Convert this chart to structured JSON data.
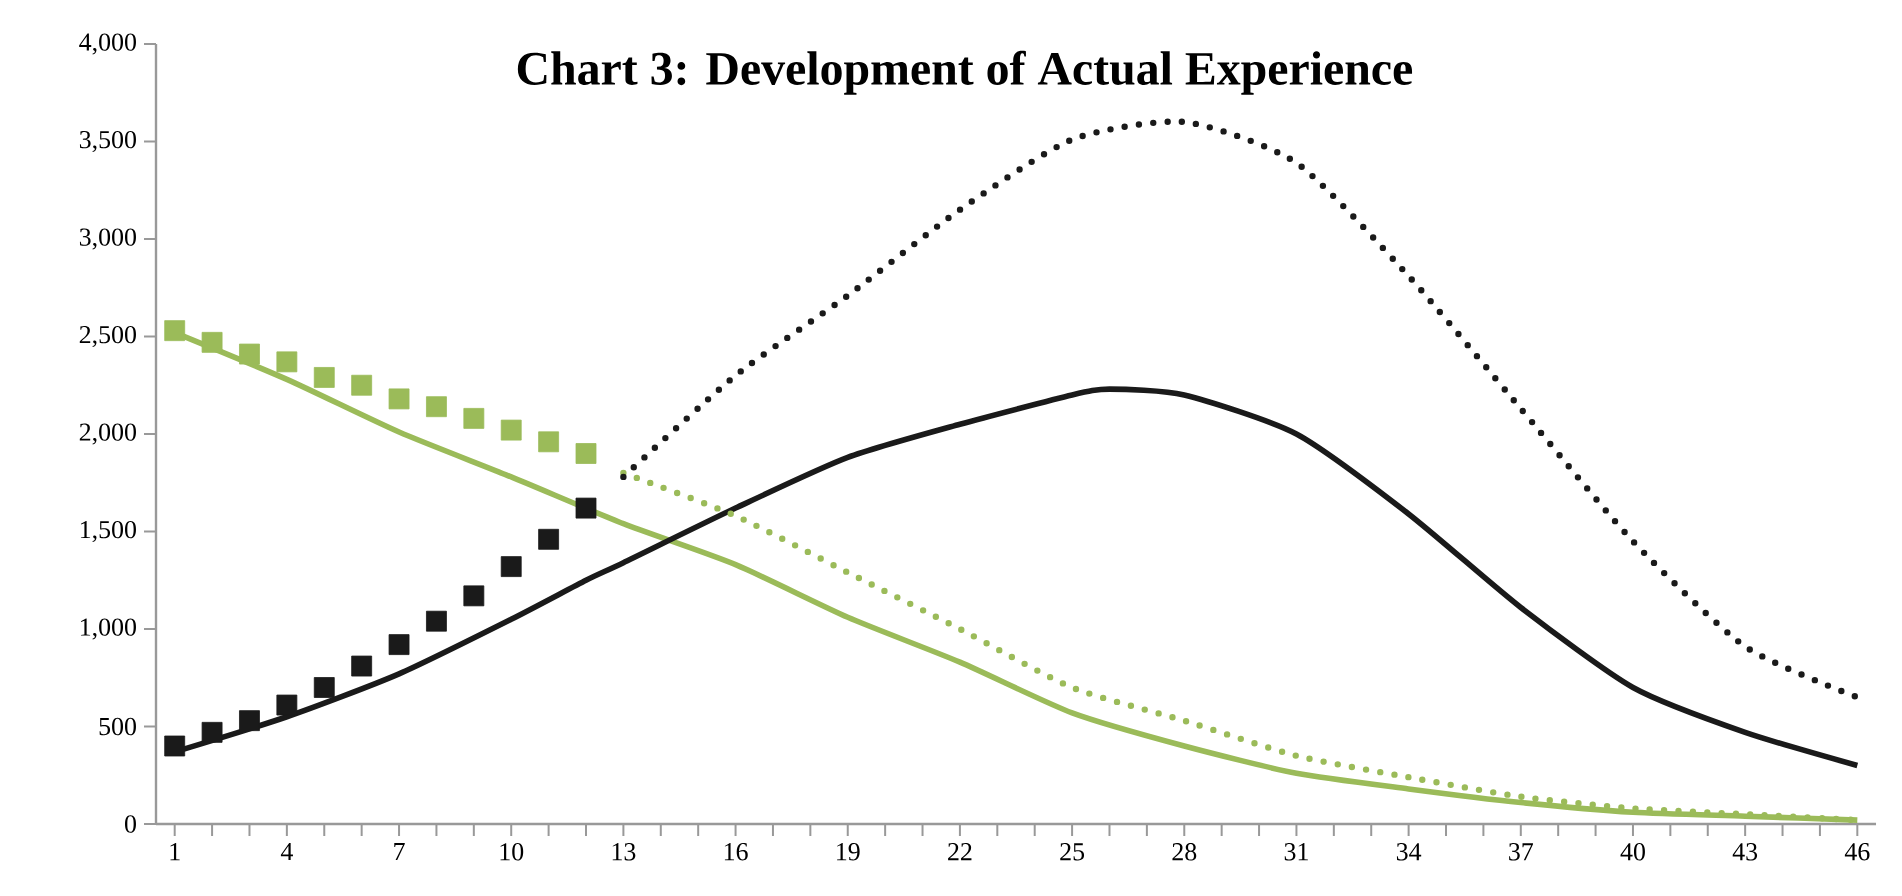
{
  "chart_data": {
    "type": "line",
    "title": "Chart 3: Development of Actual Experience",
    "xlim": [
      0.5,
      46.5
    ],
    "xticks": [
      1,
      {
        "value": 2,
        "label": null
      },
      {
        "value": 3,
        "label": null
      },
      4,
      {
        "value": 5,
        "label": null
      },
      {
        "value": 6,
        "label": null
      },
      7,
      {
        "value": 8,
        "label": null
      },
      {
        "value": 9,
        "label": null
      },
      10,
      {
        "value": 11,
        "label": null
      },
      {
        "value": 12,
        "label": null
      },
      13,
      {
        "value": 14,
        "label": null
      },
      {
        "value": 15,
        "label": null
      },
      16,
      {
        "value": 17,
        "label": null
      },
      {
        "value": 18,
        "label": null
      },
      19,
      {
        "value": 20,
        "label": null
      },
      {
        "value": 21,
        "label": null
      },
      22,
      {
        "value": 23,
        "label": null
      },
      {
        "value": 24,
        "label": null
      },
      25,
      {
        "value": 26,
        "label": null
      },
      {
        "value": 27,
        "label": null
      },
      28,
      {
        "value": 29,
        "label": null
      },
      {
        "value": 30,
        "label": null
      },
      31,
      {
        "value": 32,
        "label": null
      },
      {
        "value": 33,
        "label": null
      },
      34,
      {
        "value": 35,
        "label": null
      },
      {
        "value": 36,
        "label": null
      },
      37,
      {
        "value": 38,
        "label": null
      },
      {
        "value": 39,
        "label": null
      },
      40,
      {
        "value": 41,
        "label": null
      },
      {
        "value": 42,
        "label": null
      },
      43,
      {
        "value": 44,
        "label": null
      },
      {
        "value": 45,
        "label": null
      },
      46
    ],
    "ylim": [
      0,
      4000
    ],
    "yticks": [
      0,
      500,
      {
        "value": 1000,
        "label": "1,000"
      },
      {
        "value": 1500,
        "label": "1,500"
      },
      {
        "value": 2000,
        "label": "2,000"
      },
      {
        "value": 2500,
        "label": "2,500"
      },
      {
        "value": 3000,
        "label": "3,000"
      },
      {
        "value": 3500,
        "label": "3,500"
      },
      {
        "value": 4000,
        "label": "4,000"
      }
    ],
    "grid": false,
    "series": [
      {
        "line_style": "solid",
        "marker": "none",
        "color": "#9bbb59",
        "x": [
          1,
          4,
          7,
          10,
          13,
          16,
          19,
          22,
          25,
          28,
          31,
          34,
          37,
          40,
          43,
          46
        ],
        "values": [
          2520,
          2280,
          2010,
          1780,
          1540,
          1330,
          1060,
          830,
          570,
          400,
          260,
          180,
          110,
          60,
          40,
          20
        ]
      },
      {
        "line_style": "solid",
        "marker": "none",
        "color": "#1a1a1a",
        "x": [
          1,
          4,
          7,
          10,
          12,
          13,
          16,
          19,
          22,
          25,
          26,
          28,
          31,
          34,
          37,
          40,
          43,
          46
        ],
        "values": [
          370,
          550,
          770,
          1050,
          1250,
          1340,
          1620,
          1880,
          2050,
          2200,
          2230,
          2200,
          2000,
          1590,
          1110,
          700,
          470,
          300
        ]
      },
      {
        "line_style": "dotted",
        "marker": "none",
        "color": "#9bbb59",
        "x": [
          13,
          16,
          19,
          22,
          25,
          28,
          31,
          34,
          37,
          40,
          43,
          46
        ],
        "values": [
          1800,
          1580,
          1290,
          1000,
          700,
          530,
          350,
          240,
          140,
          80,
          50,
          20
        ]
      },
      {
        "line_style": "dotted",
        "marker": "none",
        "color": "#1a1a1a",
        "x": [
          13,
          16,
          19,
          22,
          25,
          28,
          31,
          34,
          37,
          40,
          43,
          46
        ],
        "values": [
          1780,
          2300,
          2710,
          3150,
          3510,
          3600,
          3390,
          2810,
          2130,
          1450,
          910,
          650
        ]
      },
      {
        "type": "scatter",
        "marker": "square",
        "color": "#9bbb59",
        "x": [
          1,
          2,
          3,
          4,
          5,
          6,
          7,
          8,
          9,
          10,
          11,
          12
        ],
        "values": [
          2530,
          2470,
          2410,
          2370,
          2290,
          2250,
          2180,
          2140,
          2080,
          2020,
          1960,
          1900
        ]
      },
      {
        "type": "scatter",
        "marker": "square",
        "color": "#1a1a1a",
        "x": [
          1,
          2,
          3,
          4,
          5,
          6,
          7,
          8,
          9,
          10,
          11,
          12
        ],
        "values": [
          400,
          470,
          530,
          610,
          700,
          810,
          920,
          1040,
          1170,
          1320,
          1460,
          1620
        ]
      }
    ]
  }
}
